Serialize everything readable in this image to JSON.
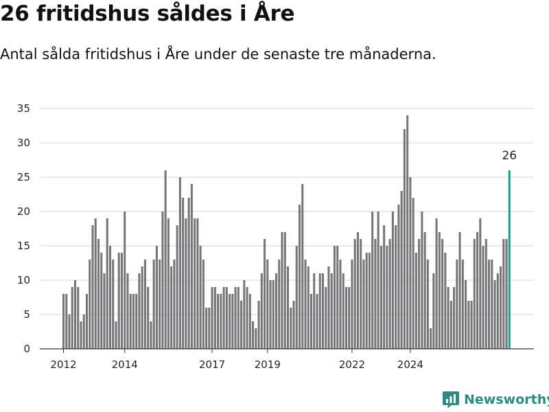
{
  "title": "26 fritidshus såldes i Åre",
  "subtitle": "Antal sålda fritidshus i Åre under de senaste tre månaderna.",
  "brand": {
    "name": "Newsworthy"
  },
  "colors": {
    "bar": "#76757a",
    "highlight": "#1a9e94",
    "grid": "#d6d6d6",
    "axis": "#333333",
    "brand": "#2f8a82"
  },
  "chart_data": {
    "type": "bar",
    "ylim": [
      0,
      35
    ],
    "yticks": [
      0,
      5,
      10,
      15,
      20,
      25,
      30,
      35
    ],
    "xticks": [
      "2012",
      "2014",
      "2017",
      "2019",
      "2022",
      "2024"
    ],
    "xtick_index": [
      0,
      21,
      51,
      70,
      99,
      119
    ],
    "values": [
      8,
      8,
      5,
      9,
      10,
      9,
      4,
      5,
      8,
      13,
      18,
      19,
      16,
      14,
      11,
      19,
      15,
      13,
      4,
      14,
      14,
      20,
      11,
      8,
      8,
      8,
      11,
      12,
      13,
      9,
      4,
      13,
      15,
      13,
      20,
      26,
      19,
      12,
      13,
      18,
      25,
      22,
      19,
      22,
      24,
      19,
      19,
      15,
      13,
      6,
      6,
      9,
      9,
      8,
      8,
      9,
      9,
      8,
      8,
      9,
      9,
      7,
      10,
      9,
      8,
      4,
      3,
      7,
      11,
      16,
      13,
      10,
      10,
      11,
      13,
      17,
      17,
      12,
      6,
      7,
      15,
      21,
      24,
      13,
      12,
      8,
      11,
      8,
      11,
      11,
      9,
      12,
      11,
      15,
      15,
      13,
      11,
      9,
      9,
      13,
      16,
      17,
      16,
      13,
      14,
      14,
      20,
      16,
      20,
      15,
      18,
      15,
      16,
      20,
      18,
      21,
      23,
      32,
      34,
      25,
      22,
      14,
      16,
      20,
      17,
      13,
      3,
      11,
      19,
      17,
      16,
      14,
      9,
      7,
      9,
      13,
      17,
      13,
      10,
      7,
      7,
      16,
      17,
      19,
      15,
      16,
      13,
      13,
      10,
      11,
      12,
      16,
      16,
      26
    ],
    "highlight_label": "26"
  }
}
